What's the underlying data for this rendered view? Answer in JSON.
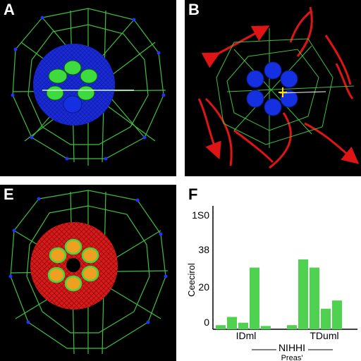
{
  "panels": [
    {
      "label": "A"
    },
    {
      "label": "B"
    },
    {
      "label": "E"
    },
    {
      "label": "F"
    }
  ],
  "colors": {
    "background": "#000000",
    "network": "#3fbf3f",
    "nucleus_blue": "#1a2ad6",
    "nucleus_red": "#d81a1a",
    "chromosome_green": "#3ddb3d",
    "arrow_red": "#e01414",
    "chart_bar": "#4fd24f"
  },
  "chart_data": {
    "type": "bar",
    "title": "",
    "ylabel": "Ceecirol",
    "xlabel": "NIHHI",
    "xlabel_sub": "Preas'",
    "group_labels": [
      "IDml",
      "TDuml"
    ],
    "ytick_labels": [
      "0",
      "20",
      "38",
      "1S0"
    ],
    "ylim": [
      0,
      150
    ],
    "series": [
      {
        "values": [
          5,
          15,
          8,
          75,
          4,
          5,
          85,
          75,
          25,
          35
        ]
      }
    ],
    "groups": [
      [
        0,
        1,
        2,
        3,
        4
      ],
      [
        5,
        6,
        7,
        8,
        9
      ]
    ]
  }
}
